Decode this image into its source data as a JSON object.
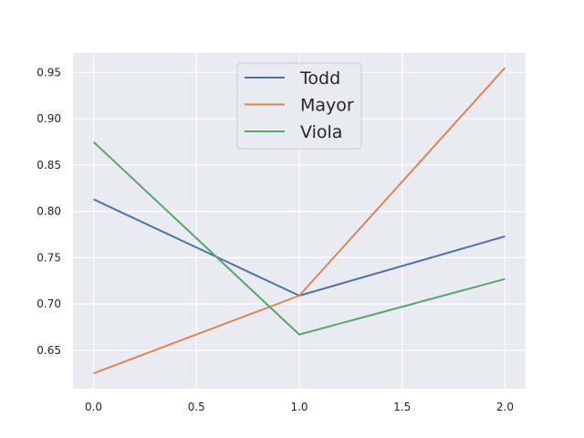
{
  "chart_data": {
    "type": "line",
    "title": "",
    "xlabel": "",
    "ylabel": "",
    "x": [
      0.0,
      1.0,
      2.0
    ],
    "xlim": [
      -0.1,
      2.1
    ],
    "ylim": [
      0.6085,
      0.971
    ],
    "xticks": [
      0.0,
      0.5,
      1.0,
      1.5,
      2.0
    ],
    "xtick_labels": [
      "0.0",
      "0.5",
      "1.0",
      "1.5",
      "2.0"
    ],
    "yticks": [
      0.65,
      0.7,
      0.75,
      0.8,
      0.85,
      0.9,
      0.95
    ],
    "ytick_labels": [
      "0.65",
      "0.70",
      "0.75",
      "0.80",
      "0.85",
      "0.90",
      "0.95"
    ],
    "grid": true,
    "legend_position": "top-center",
    "series": [
      {
        "name": "Todd",
        "color": "#4c72b0",
        "values": [
          0.813,
          0.709,
          0.773
        ]
      },
      {
        "name": "Mayor",
        "color": "#dd8452",
        "values": [
          0.625,
          0.709,
          0.955
        ]
      },
      {
        "name": "Viola",
        "color": "#55a868",
        "values": [
          0.875,
          0.667,
          0.727
        ]
      }
    ],
    "colors": {
      "background": "#eaeaf2",
      "grid": "#ffffff"
    }
  }
}
